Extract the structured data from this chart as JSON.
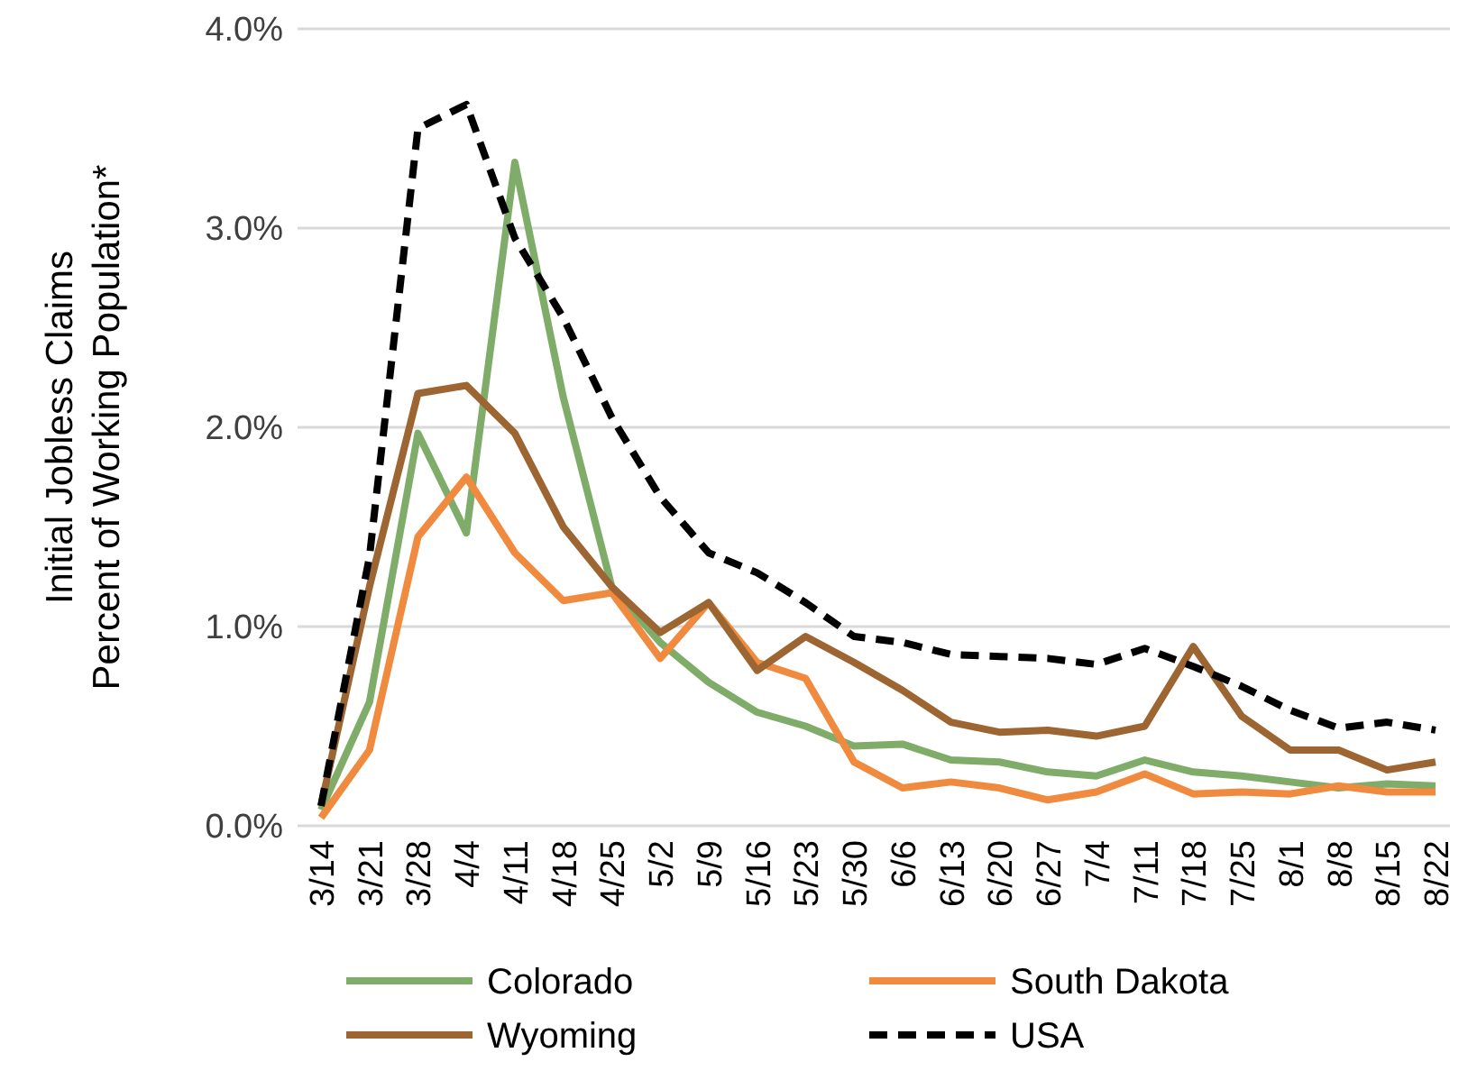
{
  "chart_data": {
    "type": "line",
    "ylabel": "Initial Jobless Claims\nPercent of Working Population*",
    "categories": [
      "3/14",
      "3/21",
      "3/28",
      "4/4",
      "4/11",
      "4/18",
      "4/25",
      "5/2",
      "5/9",
      "5/16",
      "5/23",
      "5/30",
      "6/6",
      "6/13",
      "6/20",
      "6/27",
      "7/4",
      "7/11",
      "7/18",
      "7/25",
      "8/1",
      "8/8",
      "8/15",
      "8/22"
    ],
    "series": [
      {
        "name": "Colorado",
        "color": "#7fac69",
        "line_style": "solid",
        "values": [
          0.08,
          0.62,
          1.97,
          1.47,
          3.33,
          2.15,
          1.2,
          0.92,
          0.72,
          0.57,
          0.5,
          0.4,
          0.41,
          0.33,
          0.32,
          0.27,
          0.25,
          0.33,
          0.27,
          0.25,
          0.22,
          0.19,
          0.21,
          0.2
        ]
      },
      {
        "name": "South Dakota",
        "color": "#ef8a3f",
        "line_style": "solid",
        "values": [
          0.04,
          0.38,
          1.45,
          1.75,
          1.37,
          1.13,
          1.17,
          0.84,
          1.12,
          0.82,
          0.74,
          0.32,
          0.19,
          0.22,
          0.19,
          0.13,
          0.17,
          0.26,
          0.16,
          0.17,
          0.16,
          0.2,
          0.17,
          0.17
        ]
      },
      {
        "name": "Wyoming",
        "color": "#9c6532",
        "line_style": "solid",
        "values": [
          0.1,
          1.2,
          2.17,
          2.21,
          1.97,
          1.5,
          1.2,
          0.97,
          1.12,
          0.78,
          0.95,
          0.82,
          0.68,
          0.52,
          0.47,
          0.48,
          0.45,
          0.5,
          0.9,
          0.55,
          0.38,
          0.38,
          0.28,
          0.32
        ]
      },
      {
        "name": "USA",
        "color": "#000000",
        "line_style": "dashed",
        "values": [
          0.1,
          1.35,
          3.5,
          3.62,
          2.95,
          2.55,
          2.05,
          1.65,
          1.37,
          1.27,
          1.12,
          0.95,
          0.92,
          0.86,
          0.85,
          0.84,
          0.81,
          0.89,
          0.8,
          0.7,
          0.58,
          0.49,
          0.52,
          0.48
        ]
      }
    ],
    "ylim": [
      0,
      4
    ],
    "yticks": [
      {
        "value": 0,
        "label": "0.0%"
      },
      {
        "value": 1,
        "label": "1.0%"
      },
      {
        "value": 2,
        "label": "2.0%"
      },
      {
        "value": 3,
        "label": "3.0%"
      },
      {
        "value": 4,
        "label": "4.0%"
      }
    ],
    "grid": "y",
    "legend": "bottom",
    "marker": "none"
  }
}
